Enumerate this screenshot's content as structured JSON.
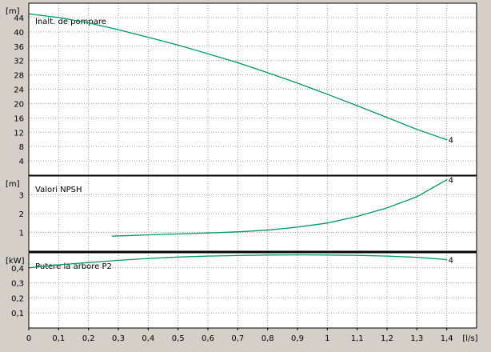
{
  "chart_data": [
    {
      "type": "line",
      "panel": "head",
      "title": "Inalt. de pompare",
      "ylabel": "[m]",
      "xlabel": "[l/s]",
      "ylim": [
        0,
        48
      ],
      "yticks": [
        "4",
        "8",
        "12",
        "16",
        "20",
        "24",
        "28",
        "32",
        "36",
        "40",
        "44"
      ],
      "xlim": [
        0,
        1.5
      ],
      "grid": true,
      "series": [
        {
          "color": "#009966",
          "end_marker": "4",
          "x": [
            0,
            0.1,
            0.2,
            0.3,
            0.4,
            0.5,
            0.6,
            0.7,
            0.8,
            0.9,
            1.0,
            1.1,
            1.2,
            1.3,
            1.4
          ],
          "y": [
            45,
            44,
            42.5,
            40.6,
            38.5,
            36.3,
            33.9,
            31.4,
            28.6,
            25.7,
            22.6,
            19.4,
            16.1,
            12.8,
            9.9
          ]
        }
      ]
    },
    {
      "type": "line",
      "panel": "npsh",
      "title": "Valori NPSH",
      "ylabel": "[m]",
      "ylim": [
        0,
        4
      ],
      "yticks": [
        "1",
        "2",
        "3"
      ],
      "xlim": [
        0,
        1.5
      ],
      "grid": true,
      "series": [
        {
          "color": "#009966",
          "end_marker": "4",
          "x": [
            0.28,
            0.4,
            0.5,
            0.6,
            0.7,
            0.8,
            0.9,
            1.0,
            1.1,
            1.2,
            1.3,
            1.4
          ],
          "y": [
            0.8,
            0.87,
            0.92,
            0.97,
            1.03,
            1.12,
            1.28,
            1.5,
            1.85,
            2.3,
            2.9,
            3.8
          ]
        }
      ]
    },
    {
      "type": "line",
      "panel": "power",
      "title": "Putere la arbore P2",
      "ylabel": "[kW]",
      "ylim": [
        0,
        0.5
      ],
      "yticks": [
        "0,1",
        "0,2",
        "0,3",
        "0,4"
      ],
      "xlim": [
        0,
        1.5
      ],
      "xticks": [
        "0",
        "0,1",
        "0,2",
        "0,3",
        "0,4",
        "0,5",
        "0,6",
        "0,7",
        "0,8",
        "0,9",
        "1",
        "1,1",
        "1,2",
        "1,3",
        "1,4"
      ],
      "xticks_values": [
        0,
        0.1,
        0.2,
        0.3,
        0.4,
        0.5,
        0.6,
        0.7,
        0.8,
        0.9,
        1.0,
        1.1,
        1.2,
        1.3,
        1.4
      ],
      "grid": true,
      "series": [
        {
          "color": "#009966",
          "end_marker": "4",
          "x": [
            0,
            0.1,
            0.2,
            0.3,
            0.4,
            0.5,
            0.6,
            0.7,
            0.8,
            0.9,
            1.0,
            1.1,
            1.2,
            1.3,
            1.4
          ],
          "y": [
            0.4,
            0.42,
            0.435,
            0.45,
            0.462,
            0.472,
            0.478,
            0.482,
            0.485,
            0.486,
            0.485,
            0.483,
            0.478,
            0.47,
            0.455
          ]
        }
      ]
    }
  ]
}
